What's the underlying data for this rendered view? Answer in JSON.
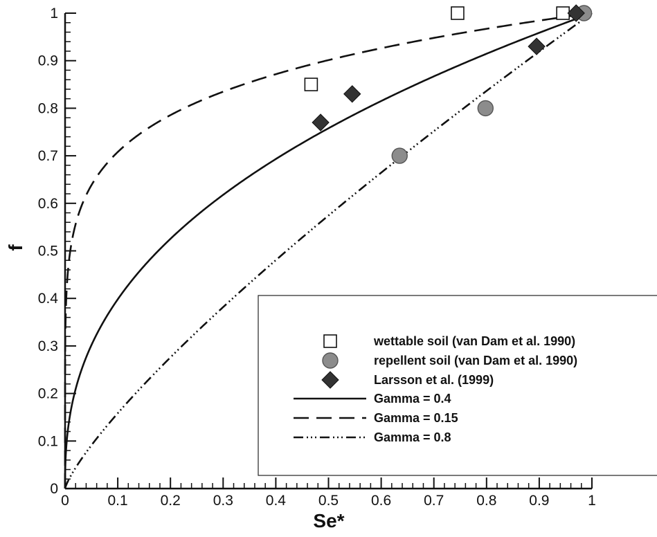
{
  "chart_data": {
    "type": "scatter",
    "title": "",
    "xlabel": "Se*",
    "ylabel": "f",
    "xlim": [
      0,
      1
    ],
    "ylim": [
      0,
      1
    ],
    "x_ticks": [
      "0",
      "0.1",
      "0.2",
      "0.3",
      "0.4",
      "0.5",
      "0.6",
      "0.7",
      "0.8",
      "0.9",
      "1"
    ],
    "y_ticks": [
      "0",
      "0.1",
      "0.2",
      "0.3",
      "0.4",
      "0.5",
      "0.6",
      "0.7",
      "0.8",
      "0.9",
      "1"
    ],
    "grid": false,
    "legend_position": "lower-right",
    "points_series": [
      {
        "name": "wettable soil (van Dam et al. 1990)",
        "marker": "square-open",
        "points": [
          [
            0.467,
            0.85
          ],
          [
            0.745,
            1.0
          ],
          [
            0.945,
            1.0
          ]
        ]
      },
      {
        "name": "repellent soil (van Dam et al. 1990)",
        "marker": "circle-gray",
        "points": [
          [
            0.635,
            0.7
          ],
          [
            0.798,
            0.8
          ],
          [
            0.985,
            1.0
          ]
        ]
      },
      {
        "name": "Larsson et al. (1999)",
        "marker": "diamond-filled",
        "points": [
          [
            0.485,
            0.77
          ],
          [
            0.545,
            0.83
          ],
          [
            0.895,
            0.93
          ],
          [
            0.97,
            1.0
          ]
        ]
      }
    ],
    "line_series": [
      {
        "name": "Gamma = 0.4",
        "gamma": 0.4,
        "style": "solid"
      },
      {
        "name": "Gamma = 0.15",
        "gamma": 0.15,
        "style": "dashed"
      },
      {
        "name": "Gamma = 0.8",
        "gamma": 0.8,
        "style": "dash-dot-dot"
      }
    ],
    "colors": {
      "line": "#111111",
      "circle_fill": "#8c8c8c",
      "diamond_fill": "#333333"
    }
  }
}
